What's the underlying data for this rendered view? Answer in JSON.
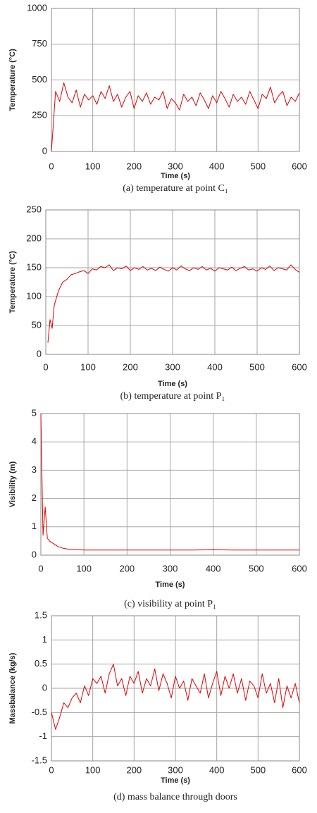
{
  "chart_data": [
    {
      "type": "line",
      "title": "(a)  temperature  at  point  C₁",
      "xlabel": "Time (s)",
      "ylabel": "Temperature (°C)",
      "color": "#e00000",
      "grid": true,
      "x": [
        0,
        10,
        20,
        30,
        40,
        50,
        60,
        70,
        80,
        90,
        100,
        110,
        120,
        130,
        140,
        150,
        160,
        170,
        180,
        190,
        200,
        210,
        220,
        230,
        240,
        250,
        260,
        270,
        280,
        290,
        300,
        310,
        320,
        330,
        340,
        350,
        360,
        370,
        380,
        390,
        400,
        410,
        420,
        430,
        440,
        450,
        460,
        470,
        480,
        490,
        500,
        510,
        520,
        530,
        540,
        550,
        560,
        570,
        580,
        590,
        600
      ],
      "values": [
        0,
        420,
        350,
        480,
        380,
        340,
        430,
        310,
        400,
        360,
        390,
        330,
        420,
        370,
        460,
        350,
        400,
        310,
        380,
        420,
        300,
        390,
        350,
        410,
        330,
        380,
        360,
        420,
        300,
        370,
        340,
        290,
        400,
        350,
        380,
        320,
        410,
        360,
        300,
        390,
        340,
        420,
        370,
        310,
        400,
        350,
        380,
        330,
        420,
        360,
        300,
        400,
        370,
        450,
        340,
        390,
        420,
        320,
        380,
        350,
        410
      ],
      "xlim": [
        0,
        600
      ],
      "ylim": [
        0,
        1000
      ],
      "xticks": [
        0,
        100,
        200,
        300,
        400,
        500,
        600
      ],
      "yticks": [
        0,
        250,
        500,
        750,
        1000
      ]
    },
    {
      "type": "line",
      "title": "(b)  temperature  at  point  P₁",
      "xlabel": "Time (s)",
      "ylabel": "Temperature (°C)",
      "color": "#e00000",
      "grid": true,
      "x": [
        5,
        10,
        15,
        20,
        30,
        40,
        50,
        60,
        70,
        80,
        90,
        100,
        110,
        120,
        130,
        140,
        150,
        160,
        170,
        180,
        190,
        200,
        210,
        220,
        230,
        240,
        250,
        260,
        270,
        280,
        290,
        300,
        310,
        320,
        330,
        340,
        350,
        360,
        370,
        380,
        390,
        400,
        410,
        420,
        430,
        440,
        450,
        460,
        470,
        480,
        490,
        500,
        510,
        520,
        530,
        540,
        550,
        560,
        570,
        580,
        590,
        600
      ],
      "values": [
        20,
        60,
        45,
        85,
        110,
        125,
        130,
        138,
        140,
        143,
        145,
        140,
        148,
        146,
        152,
        150,
        155,
        145,
        150,
        148,
        153,
        145,
        150,
        147,
        152,
        146,
        149,
        145,
        151,
        147,
        144,
        150,
        146,
        153,
        148,
        145,
        150,
        147,
        152,
        146,
        149,
        144,
        150,
        148,
        146,
        151,
        145,
        149,
        152,
        146,
        148,
        144,
        150,
        147,
        153,
        145,
        150,
        148,
        146,
        155,
        147,
        142
      ],
      "xlim": [
        0,
        600
      ],
      "ylim": [
        0,
        250
      ],
      "xticks": [
        0,
        100,
        200,
        300,
        400,
        500,
        600
      ],
      "yticks": [
        0,
        50,
        100,
        150,
        200,
        250
      ]
    },
    {
      "type": "line",
      "title": "(c)  visibility  at  point  P₁",
      "xlabel": "Time (s)",
      "ylabel": "Visibility (m)",
      "color": "#e00000",
      "grid": true,
      "x": [
        0,
        5,
        10,
        15,
        20,
        30,
        40,
        50,
        60,
        70,
        80,
        90,
        100,
        150,
        200,
        250,
        300,
        350,
        400,
        450,
        500,
        550,
        600
      ],
      "values": [
        5,
        0.7,
        1.7,
        0.6,
        0.5,
        0.4,
        0.3,
        0.25,
        0.22,
        0.2,
        0.2,
        0.19,
        0.18,
        0.18,
        0.18,
        0.18,
        0.18,
        0.18,
        0.19,
        0.18,
        0.18,
        0.18,
        0.18
      ],
      "xlim": [
        0,
        600
      ],
      "ylim": [
        0,
        5
      ],
      "xticks": [
        0,
        100,
        200,
        300,
        400,
        500,
        600
      ],
      "yticks": [
        0,
        1,
        2,
        3,
        4,
        5
      ]
    },
    {
      "type": "line",
      "title": "(d)  mass  balance  through  doors",
      "xlabel": "Time (s)",
      "ylabel": "Massbalance (kg/s)",
      "color": "#e00000",
      "grid": true,
      "x": [
        0,
        10,
        20,
        30,
        40,
        50,
        60,
        70,
        80,
        90,
        100,
        110,
        120,
        130,
        140,
        150,
        160,
        170,
        180,
        190,
        200,
        210,
        220,
        230,
        240,
        250,
        260,
        270,
        280,
        290,
        300,
        310,
        320,
        330,
        340,
        350,
        360,
        370,
        380,
        390,
        400,
        410,
        420,
        430,
        440,
        450,
        460,
        470,
        480,
        490,
        500,
        510,
        520,
        530,
        540,
        550,
        560,
        570,
        580,
        590,
        600
      ],
      "values": [
        -0.5,
        -0.85,
        -0.6,
        -0.3,
        -0.4,
        -0.2,
        -0.1,
        -0.3,
        0.05,
        -0.15,
        0.2,
        0.1,
        0.25,
        -0.1,
        0.3,
        0.5,
        0.05,
        0.2,
        -0.15,
        0.25,
        0.1,
        0.35,
        -0.1,
        0.2,
        0.05,
        0.4,
        -0.05,
        0.3,
        0.1,
        -0.2,
        0.25,
        0,
        0.15,
        -0.25,
        0.2,
        0.05,
        -0.1,
        0.3,
        -0.2,
        0.1,
        0.35,
        -0.15,
        0.25,
        0,
        0.3,
        -0.1,
        0.2,
        -0.25,
        0.15,
        0.05,
        -0.2,
        0.3,
        -0.1,
        0.1,
        -0.3,
        0.2,
        -0.4,
        0.05,
        -0.2,
        0.1,
        -0.3
      ],
      "xlim": [
        0,
        600
      ],
      "ylim": [
        -1.5,
        1.5
      ],
      "xticks": [
        0,
        100,
        200,
        300,
        400,
        500,
        600
      ],
      "yticks": [
        -1.5,
        -1,
        -0.5,
        0,
        0.5,
        1,
        1.5
      ]
    }
  ]
}
